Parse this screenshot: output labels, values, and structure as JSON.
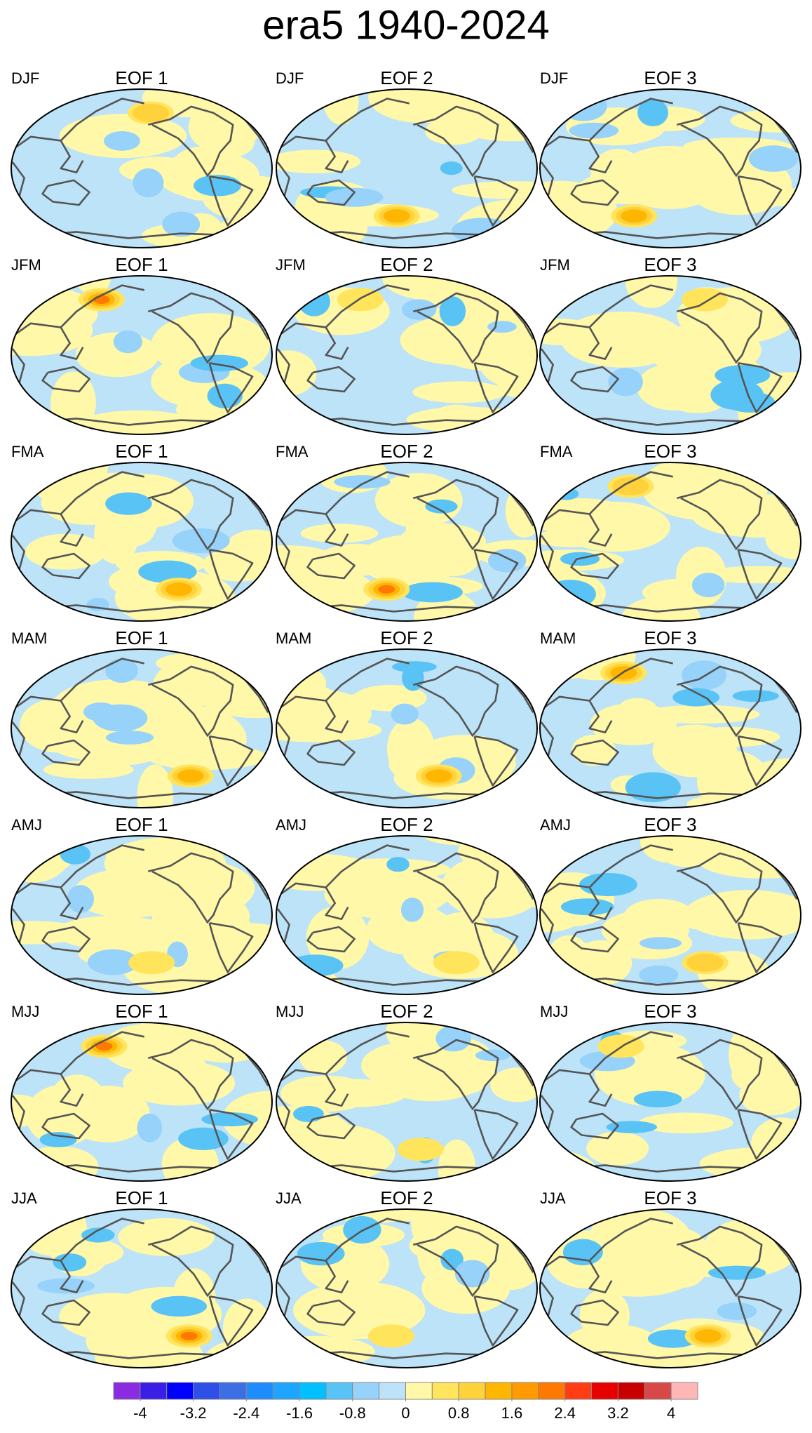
{
  "title": "era5 1940-2024",
  "panels": [
    [
      {
        "season": "DJF",
        "label": "EOF 1"
      },
      {
        "season": "DJF",
        "label": "EOF 2"
      },
      {
        "season": "DJF",
        "label": "EOF 3"
      }
    ],
    [
      {
        "season": "JFM",
        "label": "EOF 1"
      },
      {
        "season": "JFM",
        "label": "EOF 2"
      },
      {
        "season": "JFM",
        "label": "EOF 3"
      }
    ],
    [
      {
        "season": "FMA",
        "label": "EOF 1"
      },
      {
        "season": "FMA",
        "label": "EOF 2"
      },
      {
        "season": "FMA",
        "label": "EOF 3"
      }
    ],
    [
      {
        "season": "MAM",
        "label": "EOF 1"
      },
      {
        "season": "MAM",
        "label": "EOF 2"
      },
      {
        "season": "MAM",
        "label": "EOF 3"
      }
    ],
    [
      {
        "season": "AMJ",
        "label": "EOF 1"
      },
      {
        "season": "AMJ",
        "label": "EOF 2"
      },
      {
        "season": "AMJ",
        "label": "EOF 3"
      }
    ],
    [
      {
        "season": "MJJ",
        "label": "EOF 1"
      },
      {
        "season": "MJJ",
        "label": "EOF 2"
      },
      {
        "season": "MJJ",
        "label": "EOF 3"
      }
    ],
    [
      {
        "season": "JJA",
        "label": "EOF 1"
      },
      {
        "season": "JJA",
        "label": "EOF 2"
      },
      {
        "season": "JJA",
        "label": "EOF 3"
      }
    ]
  ],
  "colorbar": {
    "colors": [
      "#8a2be2",
      "#3a1ee6",
      "#0000ff",
      "#2e50e8",
      "#3c6ee6",
      "#1e8cff",
      "#1ea5ff",
      "#00c0ff",
      "#5ac3f5",
      "#96d2fa",
      "#bde3f8",
      "#fff8a8",
      "#ffe45c",
      "#ffd23c",
      "#ffb600",
      "#ff9b00",
      "#ff7800",
      "#ff3c14",
      "#e60000",
      "#c80000",
      "#d84848",
      "#ffb6b6"
    ],
    "ticks": [
      -4,
      -3.2,
      -2.4,
      -1.6,
      -0.8,
      0,
      0.8,
      1.6,
      2.4,
      3.2,
      4
    ]
  }
}
